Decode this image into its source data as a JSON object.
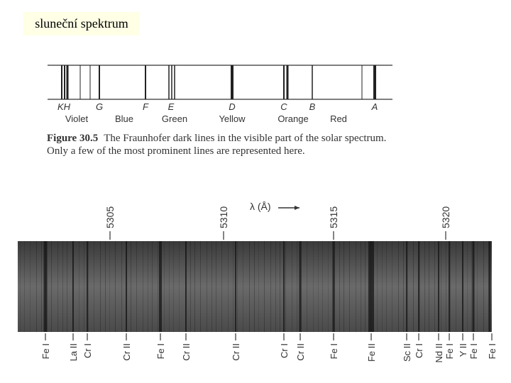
{
  "title": "sluneční spektrum",
  "figure": {
    "line_labels": [
      "KH",
      "G",
      "F",
      "E",
      "D",
      "C",
      "B",
      "A"
    ],
    "color_names": [
      "Violet",
      "Blue",
      "Green",
      "Yellow",
      "Orange",
      "Red"
    ],
    "caption_label": "Figure 30.5",
    "caption_text": "The Fraunhofer dark lines in the visible part of the solar spectrum. Only a few of the most prominent lines are represented here."
  },
  "spectrum": {
    "wavelength_ticks": [
      "5305",
      "5310",
      "5315",
      "5320"
    ],
    "axis_label": "λ (Å)",
    "element_labels": [
      "Fe I",
      "La II",
      "Cr I",
      "Cr II",
      "Fe I",
      "Cr II",
      "Cr II",
      "Cr I",
      "Cr II",
      "Fe I",
      "Fe II",
      "Sc II",
      "Cr I",
      "Nd II",
      "Fe I",
      "Y II",
      "Fe I",
      "Fe I"
    ]
  }
}
